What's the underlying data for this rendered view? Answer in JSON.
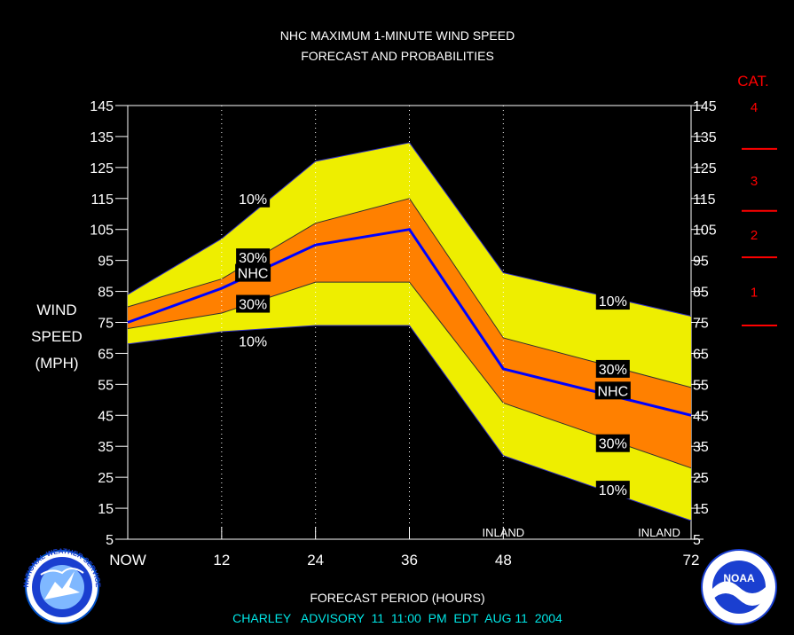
{
  "title": {
    "line1": "NHC MAXIMUM 1-MINUTE WIND SPEED",
    "line2": "FORECAST AND PROBABILITIES"
  },
  "ylabel": [
    "WIND",
    "SPEED",
    "(MPH)"
  ],
  "xlabel": "FORECAST PERIOD (HOURS)",
  "advisory": "CHARLEY   ADVISORY  11  11:00  PM  EDT  AUG 11  2004",
  "category": {
    "title": "CAT.",
    "labels": [
      "4",
      "3",
      "2",
      "1"
    ],
    "color": "#ff0000"
  },
  "inland_label": "INLAND",
  "logos": {
    "left": "NATIONAL WEATHER SERVICE",
    "right": "NOAA"
  },
  "colors": {
    "outer_band": "#eeee00",
    "inner_band": "#ff8000",
    "nhc_line": "#0000ff",
    "category_marks": "#ff0000",
    "advisory_text": "#00e5e5"
  },
  "chart_data": {
    "type": "area",
    "xlabel": "FORECAST PERIOD (HOURS)",
    "ylabel": "WIND SPEED (MPH)",
    "xlim": [
      0,
      72
    ],
    "ylim": [
      5,
      145
    ],
    "x_ticks": [
      {
        "x": 0,
        "label": "NOW"
      },
      {
        "x": 12,
        "label": "12"
      },
      {
        "x": 24,
        "label": "24"
      },
      {
        "x": 36,
        "label": "36"
      },
      {
        "x": 48,
        "label": "48"
      },
      {
        "x": 72,
        "label": "72"
      }
    ],
    "y_ticks": [
      5,
      15,
      25,
      35,
      45,
      55,
      65,
      75,
      85,
      95,
      105,
      115,
      125,
      135,
      145
    ],
    "x": [
      0,
      12,
      24,
      36,
      48,
      72
    ],
    "series": [
      {
        "name": "10%",
        "values": [
          84,
          102,
          127,
          133,
          91,
          77
        ]
      },
      {
        "name": "30%",
        "values": [
          80,
          89,
          107,
          115,
          70,
          54
        ]
      },
      {
        "name": "NHC",
        "values": [
          75,
          86,
          100,
          105,
          60,
          45
        ]
      },
      {
        "name": "30%",
        "values": [
          73,
          78,
          88,
          88,
          49,
          28
        ]
      },
      {
        "name": "10%",
        "values": [
          68,
          72,
          74,
          74,
          32,
          11
        ]
      }
    ],
    "series_labels": [
      {
        "text": "10%",
        "x": 16,
        "y": 115
      },
      {
        "text": "30%",
        "x": 16,
        "y": 96
      },
      {
        "text": "NHC",
        "x": 16,
        "y": 91
      },
      {
        "text": "30%",
        "x": 16,
        "y": 81
      },
      {
        "text": "10%",
        "x": 16,
        "y": 69
      },
      {
        "text": "10%",
        "x": 62,
        "y": 82
      },
      {
        "text": "30%",
        "x": 62,
        "y": 60
      },
      {
        "text": "NHC",
        "x": 62,
        "y": 53
      },
      {
        "text": "30%",
        "x": 62,
        "y": 36
      },
      {
        "text": "10%",
        "x": 62,
        "y": 21
      }
    ],
    "inland_marks": [
      48,
      72
    ],
    "category_thresholds": [
      74,
      96,
      111,
      131
    ],
    "grid": "vertical dotted at forecast hours"
  }
}
